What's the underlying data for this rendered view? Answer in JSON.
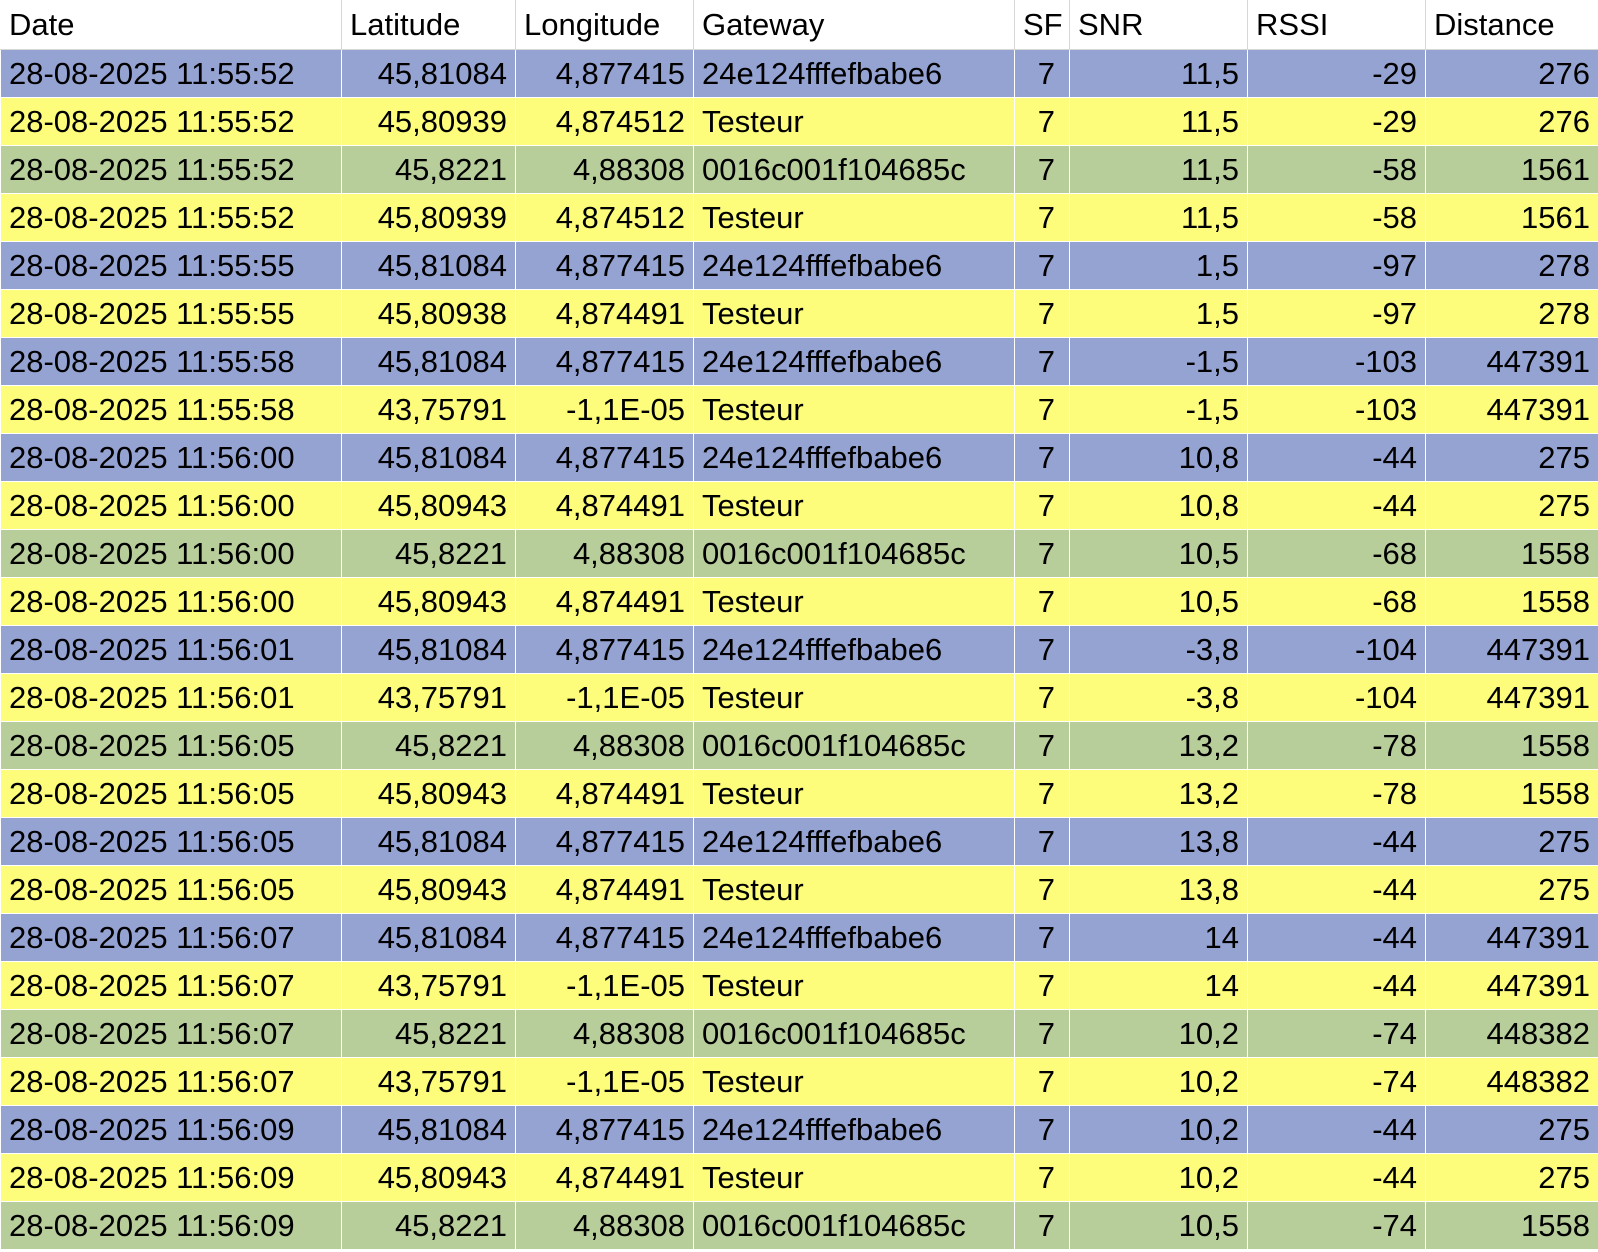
{
  "row_colors": {
    "24e124fffefbabe6": "#95a3d3",
    "Testeur": "#fdfd7b",
    "0016c001f104685c": "#b7cd9a"
  },
  "columns": [
    {
      "key": "date",
      "label": "Date",
      "align": "txt"
    },
    {
      "key": "latitude",
      "label": "Latitude",
      "align": "num"
    },
    {
      "key": "longitude",
      "label": "Longitude",
      "align": "num"
    },
    {
      "key": "gateway",
      "label": "Gateway",
      "align": "txt"
    },
    {
      "key": "sf",
      "label": "SF",
      "align": "lft-sf"
    },
    {
      "key": "snr",
      "label": "SNR",
      "align": "num"
    },
    {
      "key": "rssi",
      "label": "RSSI",
      "align": "num"
    },
    {
      "key": "distance",
      "label": "Distance",
      "align": "num"
    }
  ],
  "rows": [
    [
      "28-08-2025 11:55:52",
      "45,81084",
      "4,877415",
      "24e124fffefbabe6",
      "7",
      "11,5",
      "-29",
      "276"
    ],
    [
      "28-08-2025 11:55:52",
      "45,80939",
      "4,874512",
      "Testeur",
      "7",
      "11,5",
      "-29",
      "276"
    ],
    [
      "28-08-2025 11:55:52",
      "45,8221",
      "4,88308",
      "0016c001f104685c",
      "7",
      "11,5",
      "-58",
      "1561"
    ],
    [
      "28-08-2025 11:55:52",
      "45,80939",
      "4,874512",
      "Testeur",
      "7",
      "11,5",
      "-58",
      "1561"
    ],
    [
      "28-08-2025 11:55:55",
      "45,81084",
      "4,877415",
      "24e124fffefbabe6",
      "7",
      "1,5",
      "-97",
      "278"
    ],
    [
      "28-08-2025 11:55:55",
      "45,80938",
      "4,874491",
      "Testeur",
      "7",
      "1,5",
      "-97",
      "278"
    ],
    [
      "28-08-2025 11:55:58",
      "45,81084",
      "4,877415",
      "24e124fffefbabe6",
      "7",
      "-1,5",
      "-103",
      "447391"
    ],
    [
      "28-08-2025 11:55:58",
      "43,75791",
      "-1,1E-05",
      "Testeur",
      "7",
      "-1,5",
      "-103",
      "447391"
    ],
    [
      "28-08-2025 11:56:00",
      "45,81084",
      "4,877415",
      "24e124fffefbabe6",
      "7",
      "10,8",
      "-44",
      "275"
    ],
    [
      "28-08-2025 11:56:00",
      "45,80943",
      "4,874491",
      "Testeur",
      "7",
      "10,8",
      "-44",
      "275"
    ],
    [
      "28-08-2025 11:56:00",
      "45,8221",
      "4,88308",
      "0016c001f104685c",
      "7",
      "10,5",
      "-68",
      "1558"
    ],
    [
      "28-08-2025 11:56:00",
      "45,80943",
      "4,874491",
      "Testeur",
      "7",
      "10,5",
      "-68",
      "1558"
    ],
    [
      "28-08-2025 11:56:01",
      "45,81084",
      "4,877415",
      "24e124fffefbabe6",
      "7",
      "-3,8",
      "-104",
      "447391"
    ],
    [
      "28-08-2025 11:56:01",
      "43,75791",
      "-1,1E-05",
      "Testeur",
      "7",
      "-3,8",
      "-104",
      "447391"
    ],
    [
      "28-08-2025 11:56:05",
      "45,8221",
      "4,88308",
      "0016c001f104685c",
      "7",
      "13,2",
      "-78",
      "1558"
    ],
    [
      "28-08-2025 11:56:05",
      "45,80943",
      "4,874491",
      "Testeur",
      "7",
      "13,2",
      "-78",
      "1558"
    ],
    [
      "28-08-2025 11:56:05",
      "45,81084",
      "4,877415",
      "24e124fffefbabe6",
      "7",
      "13,8",
      "-44",
      "275"
    ],
    [
      "28-08-2025 11:56:05",
      "45,80943",
      "4,874491",
      "Testeur",
      "7",
      "13,8",
      "-44",
      "275"
    ],
    [
      "28-08-2025 11:56:07",
      "45,81084",
      "4,877415",
      "24e124fffefbabe6",
      "7",
      "14",
      "-44",
      "447391"
    ],
    [
      "28-08-2025 11:56:07",
      "43,75791",
      "-1,1E-05",
      "Testeur",
      "7",
      "14",
      "-44",
      "447391"
    ],
    [
      "28-08-2025 11:56:07",
      "45,8221",
      "4,88308",
      "0016c001f104685c",
      "7",
      "10,2",
      "-74",
      "448382"
    ],
    [
      "28-08-2025 11:56:07",
      "43,75791",
      "-1,1E-05",
      "Testeur",
      "7",
      "10,2",
      "-74",
      "448382"
    ],
    [
      "28-08-2025 11:56:09",
      "45,81084",
      "4,877415",
      "24e124fffefbabe6",
      "7",
      "10,2",
      "-44",
      "275"
    ],
    [
      "28-08-2025 11:56:09",
      "45,80943",
      "4,874491",
      "Testeur",
      "7",
      "10,2",
      "-44",
      "275"
    ],
    [
      "28-08-2025 11:56:09",
      "45,8221",
      "4,88308",
      "0016c001f104685c",
      "7",
      "10,5",
      "-74",
      "1558"
    ]
  ]
}
